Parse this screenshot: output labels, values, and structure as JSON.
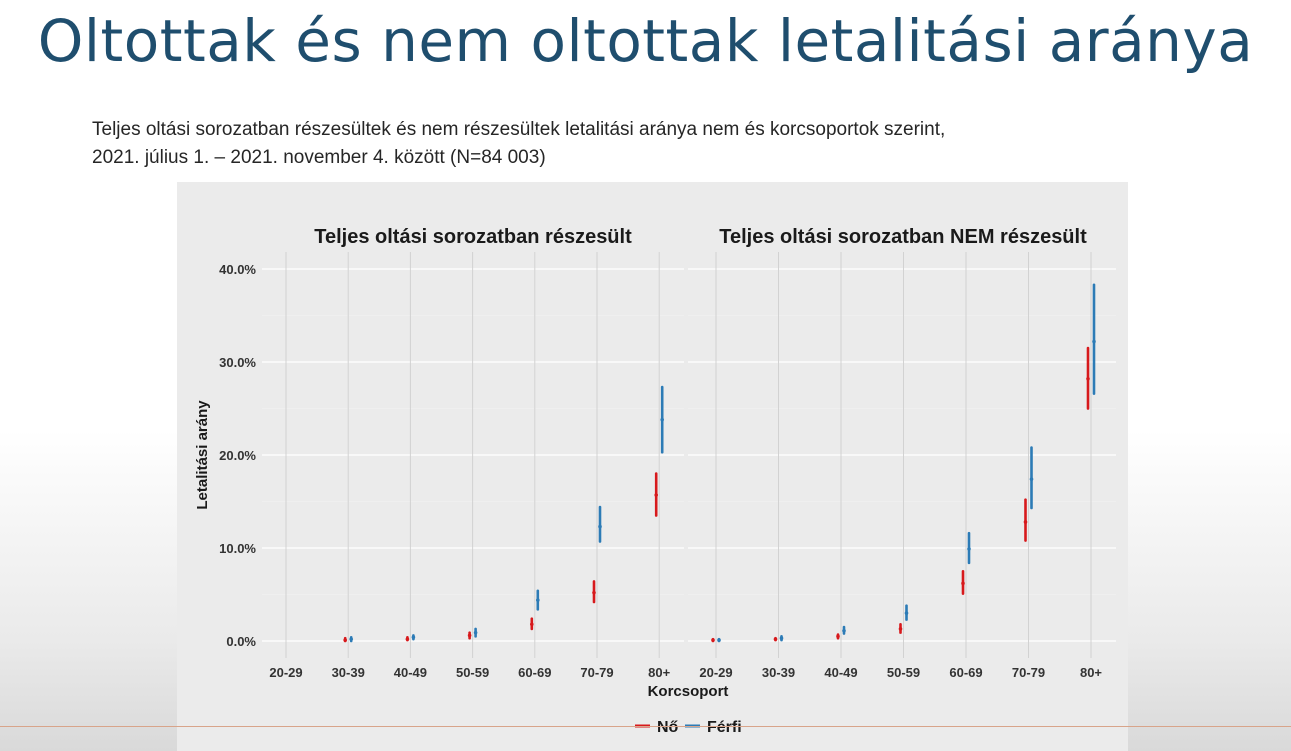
{
  "slide": {
    "title": "Oltottak és nem oltottak letalitási aránya",
    "subtitle_line1": "Teljes oltási sorozatban részesültek és nem részesültek letalitási aránya nem és korcsoportok szerint,",
    "subtitle_line2": "2021. július 1. – 2021. november 4. között (N=84 003)"
  },
  "colors": {
    "female": "#d7191c",
    "male": "#2c7bb6"
  },
  "chart_data": {
    "type": "scatter",
    "xlabel": "Korcsoport",
    "ylabel": "Letalitási arány",
    "ylim": [
      0,
      40
    ],
    "y_ticks": [
      "0.0%",
      "10.0%",
      "20.0%",
      "30.0%",
      "40.0%"
    ],
    "y_tick_values": [
      0,
      10,
      20,
      30,
      40
    ],
    "legend_position": "bottom",
    "legend": [
      {
        "name": "Nő",
        "color_key": "female"
      },
      {
        "name": "Férfi",
        "color_key": "male"
      }
    ],
    "panels": [
      {
        "title": "Teljes oltási sorozatban részesült",
        "categories": [
          "20-29",
          "30-39",
          "40-49",
          "50-59",
          "60-69",
          "70-79",
          "80+"
        ],
        "series": [
          {
            "name": "Nő",
            "values": [
              null,
              0.1,
              0.2,
              0.6,
              1.8,
              5.2,
              15.7
            ],
            "lower": [
              null,
              0.0,
              0.1,
              0.3,
              1.3,
              4.2,
              13.5
            ],
            "upper": [
              null,
              0.3,
              0.4,
              0.9,
              2.4,
              6.4,
              18.0
            ]
          },
          {
            "name": "Férfi",
            "values": [
              null,
              0.2,
              0.4,
              0.9,
              4.4,
              12.3,
              23.8
            ],
            "lower": [
              null,
              0.0,
              0.2,
              0.5,
              3.4,
              10.7,
              20.3
            ],
            "upper": [
              null,
              0.4,
              0.6,
              1.3,
              5.4,
              14.4,
              27.3
            ]
          }
        ]
      },
      {
        "title": "Teljes oltási sorozatban NEM részesült",
        "categories": [
          "20-29",
          "30-39",
          "40-49",
          "50-59",
          "60-69",
          "70-79",
          "80+"
        ],
        "series": [
          {
            "name": "Nő",
            "values": [
              0.1,
              0.2,
              0.5,
              1.3,
              6.2,
              12.8,
              28.2
            ],
            "lower": [
              0.0,
              0.1,
              0.3,
              0.9,
              5.1,
              10.8,
              25.0
            ],
            "upper": [
              0.2,
              0.3,
              0.7,
              1.8,
              7.5,
              15.2,
              31.5
            ]
          },
          {
            "name": "Férfi",
            "values": [
              0.1,
              0.3,
              1.1,
              3.0,
              9.9,
              17.4,
              32.2
            ],
            "lower": [
              0.0,
              0.1,
              0.8,
              2.3,
              8.4,
              14.3,
              26.6
            ],
            "upper": [
              0.2,
              0.5,
              1.5,
              3.8,
              11.6,
              20.8,
              38.3
            ]
          }
        ]
      }
    ]
  }
}
